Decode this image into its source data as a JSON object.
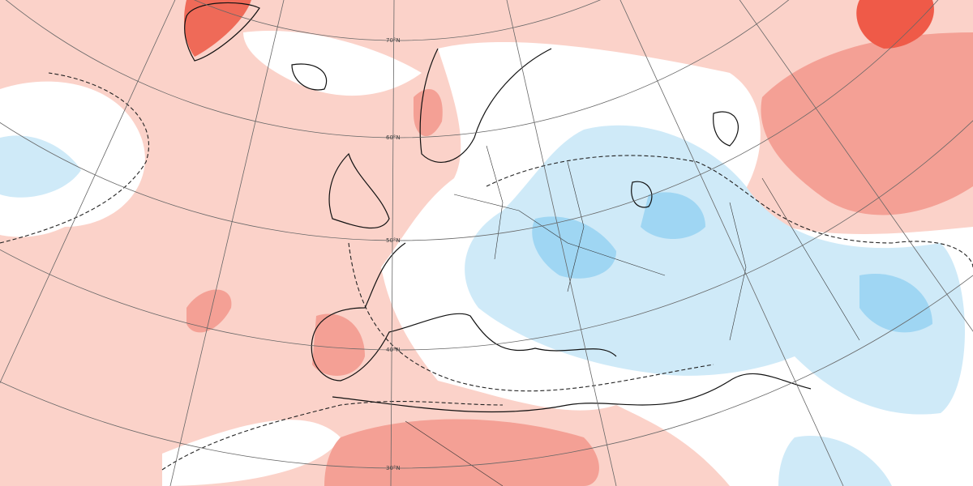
{
  "map": {
    "latitude_labels": [
      "70°N",
      "60°N",
      "50°N",
      "40°N",
      "30°N"
    ]
  }
}
